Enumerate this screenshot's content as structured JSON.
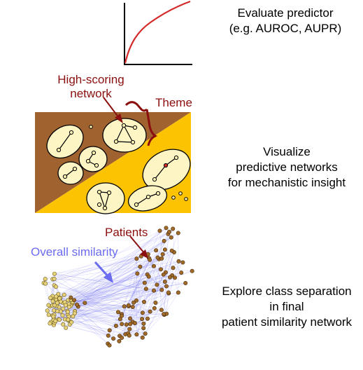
{
  "captions": {
    "evaluate": [
      "Evaluate predictor",
      "(e.g. AUROC, AUPR)"
    ],
    "visualize": [
      "Visualize",
      "predictive networks",
      "for mechanistic insight"
    ],
    "explore": [
      "Explore class separation",
      "in final",
      "patient similarity network"
    ]
  },
  "labels": {
    "high_scoring": [
      "High-scoring",
      "network"
    ],
    "theme": "Theme",
    "patients": "Patients",
    "overall_similarity": "Overall similarity"
  },
  "colors": {
    "curve": "#d42a2a",
    "brown_region": "#a0622f",
    "gold_region": "#fcc302",
    "network_fill": "#fdf5c4",
    "node_fill": "#fdf3b0",
    "highlight_node": "#d42a2a",
    "annotation": "#8b0f0f",
    "similarity": "#6b6bf0",
    "patient_class_a": "#e8d37a",
    "patient_class_b": "#a06a28"
  }
}
